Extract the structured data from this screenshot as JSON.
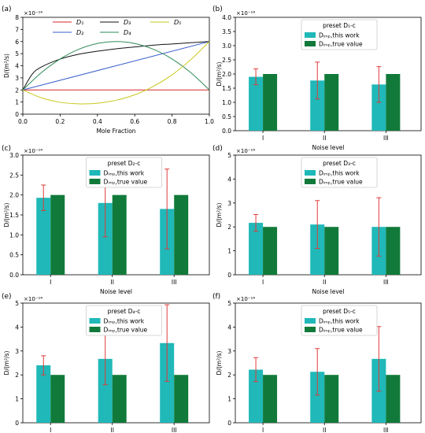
{
  "colors": {
    "teal": "#20b8b8",
    "green": "#117a3a",
    "error": "#e03a3a",
    "D1": "#d62728",
    "D2": "#3a5fcd",
    "D3": "#111111",
    "D4": "#2e8b57",
    "D5": "#c8c81e"
  },
  "chart_data": [
    {
      "id": "a",
      "panel_label": "(a)",
      "type": "line",
      "title": "",
      "xlabel": "Mole Fraction",
      "ylabel": "D/(m²/s)",
      "exponent": "×10⁻¹⁴",
      "xlim": [
        0.0,
        1.0
      ],
      "ylim": [
        0,
        8
      ],
      "xticks": [
        "0.0",
        "0.2",
        "0.4",
        "0.6",
        "0.8",
        "1.0"
      ],
      "yticks": [
        "0",
        "1",
        "2",
        "3",
        "4",
        "5",
        "6",
        "7",
        "8"
      ],
      "legend_position": "top",
      "series": [
        {
          "name": "D1",
          "legend": "D₁",
          "x": [
            0,
            1
          ],
          "y": [
            2,
            2
          ]
        },
        {
          "name": "D2",
          "legend": "D₂",
          "x": [
            0,
            1
          ],
          "y": [
            2,
            6
          ]
        },
        {
          "name": "D3",
          "legend": "D₃",
          "x": [
            0,
            0.05,
            0.1,
            0.2,
            0.3,
            0.4,
            0.5,
            0.6,
            0.7,
            0.8,
            0.9,
            1.0
          ],
          "y": [
            2.0,
            3.3,
            3.9,
            4.55,
            4.95,
            5.2,
            5.4,
            5.55,
            5.7,
            5.8,
            5.9,
            6.0
          ]
        },
        {
          "name": "D4",
          "legend": "D₄",
          "x": [
            0,
            0.1,
            0.2,
            0.3,
            0.4,
            0.5,
            0.6,
            0.7,
            0.8,
            0.9,
            1.0
          ],
          "y": [
            2.0,
            3.44,
            4.56,
            5.36,
            5.84,
            6.0,
            5.84,
            5.36,
            4.56,
            3.44,
            2.0
          ]
        },
        {
          "name": "D5",
          "legend": "D₅",
          "x": [
            0,
            0.1,
            0.2,
            0.3,
            0.33,
            0.4,
            0.5,
            0.6,
            0.7,
            0.8,
            0.9,
            1.0
          ],
          "y": [
            2.0,
            1.35,
            0.98,
            0.85,
            0.85,
            0.9,
            1.15,
            1.6,
            2.3,
            3.25,
            4.5,
            6.0
          ]
        }
      ]
    },
    {
      "id": "b",
      "panel_label": "(b)",
      "type": "bar",
      "xlabel": "Noise level",
      "ylabel": "D/(m²/s)",
      "exponent": "×10⁻¹⁴",
      "ylim": [
        0,
        4.0
      ],
      "yticks": [
        "0.0",
        "0.5",
        "1.0",
        "1.5",
        "2.0",
        "2.5",
        "3.0",
        "3.5",
        "4.0"
      ],
      "categories": [
        "I",
        "II",
        "III"
      ],
      "legend_title": "preset D₁-c",
      "legend_position": "top-right",
      "series": [
        {
          "name": "D_imp,this work",
          "legend": "Dᵢₘₚ,this work",
          "values": [
            1.9,
            1.77,
            1.63
          ],
          "errors": [
            0.28,
            0.65,
            0.63
          ]
        },
        {
          "name": "D_imp,true value",
          "legend": "Dᵢₘₚ,true value",
          "values": [
            2.0,
            2.0,
            2.0
          ]
        }
      ]
    },
    {
      "id": "c",
      "panel_label": "(c)",
      "type": "bar",
      "xlabel": "Noise level",
      "ylabel": "D/(m²/s)",
      "exponent": "×10⁻¹⁴",
      "ylim": [
        0,
        3.0
      ],
      "yticks": [
        "0.0",
        "0.5",
        "1.0",
        "1.5",
        "2.0",
        "2.5",
        "3.0"
      ],
      "categories": [
        "I",
        "II",
        "III"
      ],
      "legend_title": "preset D₂-c",
      "legend_position": "top-center",
      "series": [
        {
          "name": "D_imp,this work",
          "legend": "Dᵢₘₚ,this work",
          "values": [
            1.93,
            1.8,
            1.65
          ],
          "errors": [
            0.32,
            0.85,
            1.0
          ]
        },
        {
          "name": "D_imp,true value",
          "legend": "Dᵢₘₚ,true value",
          "values": [
            2.0,
            2.0,
            2.0
          ]
        }
      ]
    },
    {
      "id": "d",
      "panel_label": "(d)",
      "type": "bar",
      "xlabel": "Noise level",
      "ylabel": "D/(m²/s)",
      "exponent": "×10⁻¹⁴",
      "ylim": [
        0,
        5
      ],
      "yticks": [
        "0",
        "1",
        "2",
        "3",
        "4",
        "5"
      ],
      "categories": [
        "I",
        "II",
        "III"
      ],
      "legend_title": "preset D₃-c",
      "legend_position": "top-right",
      "series": [
        {
          "name": "D_imp,this work",
          "legend": "Dᵢₘₚ,this work",
          "values": [
            2.17,
            2.1,
            2.0
          ],
          "errors": [
            0.35,
            1.0,
            1.22
          ]
        },
        {
          "name": "D_imp,true value",
          "legend": "Dᵢₘₚ,true value",
          "values": [
            2.0,
            2.0,
            2.0
          ]
        }
      ]
    },
    {
      "id": "e",
      "panel_label": "(e)",
      "type": "bar",
      "xlabel": "Noise level",
      "ylabel": "D/(m²/s)",
      "exponent": "×10⁻¹⁴",
      "ylim": [
        0,
        5
      ],
      "yticks": [
        "0",
        "1",
        "2",
        "3",
        "4",
        "5"
      ],
      "categories": [
        "I",
        "II",
        "III"
      ],
      "legend_title": "preset D₄-c",
      "legend_position": "top-center",
      "series": [
        {
          "name": "D_imp,this work",
          "legend": "Dᵢₘₚ,this work",
          "values": [
            2.4,
            2.67,
            3.33
          ],
          "errors": [
            0.4,
            1.08,
            1.6
          ]
        },
        {
          "name": "D_imp,true value",
          "legend": "Dᵢₘₚ,true value",
          "values": [
            2.0,
            2.0,
            2.0
          ]
        }
      ]
    },
    {
      "id": "f",
      "panel_label": "(f)",
      "type": "bar",
      "xlabel": "Noise level",
      "ylabel": "D/(m²/s)",
      "exponent": "×10⁻¹⁴",
      "ylim": [
        0,
        5
      ],
      "yticks": [
        "0",
        "1",
        "2",
        "3",
        "4",
        "5"
      ],
      "categories": [
        "I",
        "II",
        "III"
      ],
      "legend_title": "preset D₅-c",
      "legend_position": "top-right",
      "series": [
        {
          "name": "D_imp,this work",
          "legend": "Dᵢₘₚ,this work",
          "values": [
            2.22,
            2.13,
            2.67
          ],
          "errors": [
            0.5,
            0.97,
            1.35
          ]
        },
        {
          "name": "D_imp,true value",
          "legend": "Dᵢₘₚ,true value",
          "values": [
            2.0,
            2.0,
            2.0
          ]
        }
      ]
    }
  ]
}
